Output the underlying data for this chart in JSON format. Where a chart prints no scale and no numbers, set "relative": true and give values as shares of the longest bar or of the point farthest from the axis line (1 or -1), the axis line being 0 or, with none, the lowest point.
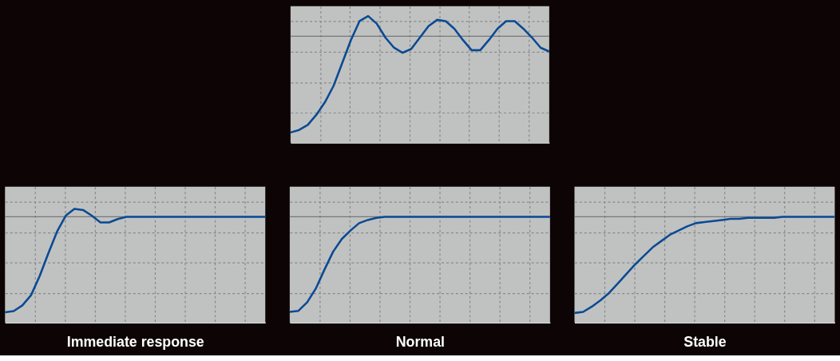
{
  "chart_data": [
    {
      "type": "line",
      "categories": [
        null,
        null,
        null,
        null,
        null,
        null,
        null,
        null,
        null,
        null,
        null,
        null,
        null,
        null,
        null,
        null,
        null,
        null,
        null,
        null,
        null,
        null,
        null,
        null,
        null,
        null,
        null,
        null,
        null,
        null,
        null
      ],
      "relative": true,
      "grid": true,
      "series": [
        {
          "color": "#0a4a94",
          "values": [
            0.08,
            0.1,
            0.14,
            0.22,
            0.32,
            0.45,
            0.63,
            0.81,
            0.96,
            1.0,
            0.94,
            0.83,
            0.75,
            0.71,
            0.74,
            0.83,
            0.92,
            0.97,
            0.96,
            0.9,
            0.81,
            0.73,
            0.73,
            0.81,
            0.9,
            0.96,
            0.96,
            0.9,
            0.83,
            0.75,
            0.72
          ]
        }
      ],
      "ref_lines": [
        {
          "axis": "y",
          "value": 0.84,
          "color": "#777777"
        }
      ]
    },
    {
      "type": "line",
      "categories": [
        null,
        null,
        null,
        null,
        null,
        null,
        null,
        null,
        null,
        null,
        null,
        null,
        null,
        null,
        null,
        null,
        null,
        null,
        null,
        null,
        null,
        null,
        null,
        null,
        null,
        null,
        null,
        null,
        null,
        null,
        null
      ],
      "relative": true,
      "grid": true,
      "xlabel": "Immediate response",
      "series": [
        {
          "color": "#0a4a94",
          "values": [
            0.09,
            0.1,
            0.15,
            0.24,
            0.41,
            0.61,
            0.8,
            0.94,
            1.0,
            0.99,
            0.94,
            0.88,
            0.88,
            0.91,
            0.93,
            0.93,
            0.93,
            0.93,
            0.93,
            0.93,
            0.93,
            0.93,
            0.93,
            0.93,
            0.93,
            0.93,
            0.93,
            0.93,
            0.93,
            0.93,
            0.93
          ]
        }
      ],
      "ref_lines": [
        {
          "axis": "y",
          "value": 0.93,
          "color": "#777777"
        }
      ]
    },
    {
      "type": "line",
      "categories": [
        null,
        null,
        null,
        null,
        null,
        null,
        null,
        null,
        null,
        null,
        null,
        null,
        null,
        null,
        null,
        null,
        null,
        null,
        null,
        null,
        null,
        null,
        null,
        null,
        null,
        null,
        null,
        null,
        null,
        null,
        null
      ],
      "relative": true,
      "grid": true,
      "xlabel": "Normal",
      "series": [
        {
          "color": "#0a4a94",
          "values": [
            0.1,
            0.11,
            0.19,
            0.32,
            0.5,
            0.67,
            0.79,
            0.87,
            0.94,
            0.97,
            0.99,
            1.0,
            1.0,
            1.0,
            1.0,
            1.0,
            1.0,
            1.0,
            1.0,
            1.0,
            1.0,
            1.0,
            1.0,
            1.0,
            1.0,
            1.0,
            1.0,
            1.0,
            1.0,
            1.0,
            1.0
          ]
        }
      ],
      "ref_lines": [
        {
          "axis": "y",
          "value": 1.0,
          "color": "#777777"
        }
      ]
    },
    {
      "type": "line",
      "categories": [
        null,
        null,
        null,
        null,
        null,
        null,
        null,
        null,
        null,
        null,
        null,
        null,
        null,
        null,
        null,
        null,
        null,
        null,
        null,
        null,
        null,
        null,
        null,
        null,
        null,
        null,
        null,
        null,
        null,
        null,
        null
      ],
      "relative": true,
      "grid": true,
      "xlabel": "Stable",
      "series": [
        {
          "color": "#0a4a94",
          "values": [
            0.09,
            0.1,
            0.15,
            0.21,
            0.28,
            0.37,
            0.46,
            0.55,
            0.63,
            0.71,
            0.77,
            0.83,
            0.87,
            0.91,
            0.94,
            0.95,
            0.96,
            0.97,
            0.98,
            0.98,
            0.99,
            0.99,
            0.99,
            0.99,
            1.0,
            1.0,
            1.0,
            1.0,
            1.0,
            1.0,
            1.0
          ]
        }
      ],
      "ref_lines": [
        {
          "axis": "y",
          "value": 1.0,
          "color": "#777777"
        }
      ]
    }
  ]
}
